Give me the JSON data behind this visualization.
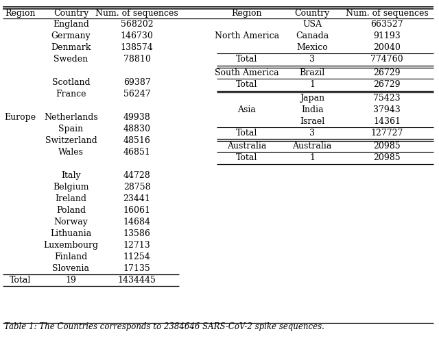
{
  "title": "Table 1: The Countries corresponds to 2384646 SARS-CoV-2 spike sequences.",
  "left_rows": [
    [
      "",
      "England",
      "568202"
    ],
    [
      "",
      "Germany",
      "146730"
    ],
    [
      "",
      "Denmark",
      "138574"
    ],
    [
      "",
      "Sweden",
      "78810"
    ],
    [
      "",
      "",
      ""
    ],
    [
      "",
      "Scotland",
      "69387"
    ],
    [
      "",
      "France",
      "56247"
    ],
    [
      "",
      "",
      ""
    ],
    [
      "Europe",
      "Netherlands",
      "49938"
    ],
    [
      "",
      "Spain",
      "48830"
    ],
    [
      "",
      "Switzerland",
      "48516"
    ],
    [
      "",
      "Wales",
      "46851"
    ],
    [
      "",
      "",
      ""
    ],
    [
      "",
      "Italy",
      "44728"
    ],
    [
      "",
      "Belgium",
      "28758"
    ],
    [
      "",
      "Ireland",
      "23441"
    ],
    [
      "",
      "Poland",
      "16061"
    ],
    [
      "",
      "Norway",
      "14684"
    ],
    [
      "",
      "Lithuania",
      "13586"
    ],
    [
      "",
      "Luxembourg",
      "12713"
    ],
    [
      "",
      "Finland",
      "11254"
    ],
    [
      "",
      "Slovenia",
      "17135"
    ]
  ],
  "left_total": [
    "Total",
    "19",
    "1434445"
  ],
  "right_sections": [
    {
      "region": "North America",
      "countries": [
        [
          "USA",
          "663527"
        ],
        [
          "Canada",
          "91193"
        ],
        [
          "Mexico",
          "20040"
        ]
      ],
      "total": [
        "3",
        "774760"
      ]
    },
    {
      "region": "South America",
      "countries": [
        [
          "Brazil",
          "26729"
        ]
      ],
      "total": [
        "1",
        "26729"
      ]
    },
    {
      "region": "Asia",
      "countries": [
        [
          "Japan",
          "75423"
        ],
        [
          "India",
          "37943"
        ],
        [
          "Israel",
          "14361"
        ]
      ],
      "total": [
        "3",
        "127727"
      ]
    },
    {
      "region": "Australia",
      "countries": [
        [
          "Australia",
          "20985"
        ]
      ],
      "total": [
        "1",
        "20985"
      ]
    }
  ],
  "font_size": 9.0,
  "background_color": "#ffffff",
  "text_color": "#000000"
}
